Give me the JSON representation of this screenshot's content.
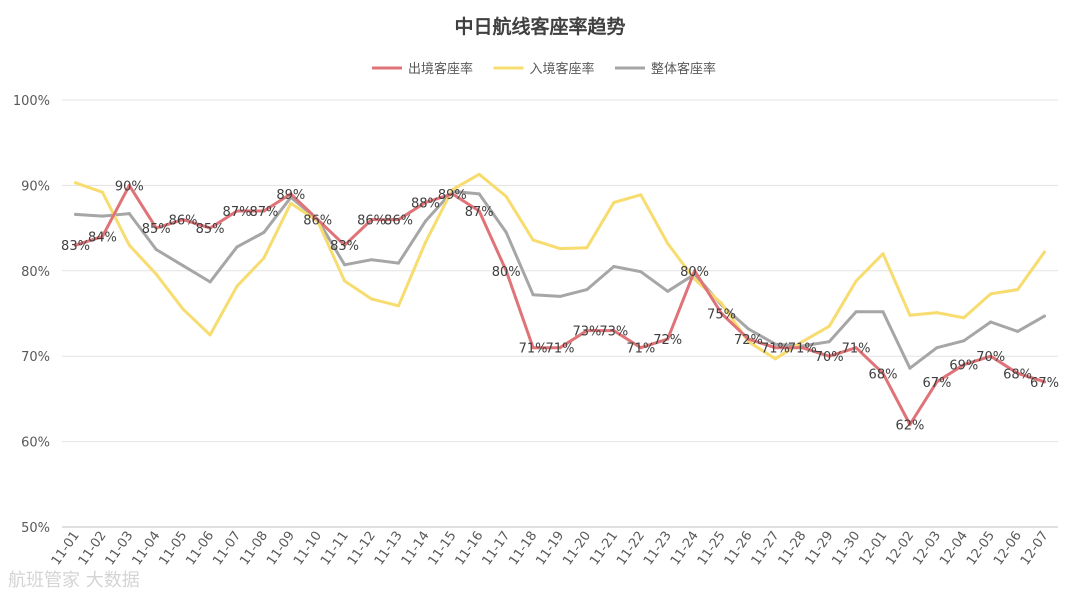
{
  "chart_data": {
    "type": "line",
    "title": "中日航线客座率趋势",
    "categories": [
      "11-01",
      "11-02",
      "11-03",
      "11-04",
      "11-05",
      "11-06",
      "11-07",
      "11-08",
      "11-09",
      "11-10",
      "11-11",
      "11-12",
      "11-13",
      "11-14",
      "11-15",
      "11-16",
      "11-17",
      "11-18",
      "11-19",
      "11-20",
      "11-21",
      "11-22",
      "11-23",
      "11-24",
      "11-25",
      "11-26",
      "11-27",
      "11-28",
      "11-29",
      "11-30",
      "12-01",
      "12-02",
      "12-03",
      "12-04",
      "12-05",
      "12-06",
      "12-07"
    ],
    "ylim": [
      0.5,
      1.0
    ],
    "yticks": [
      {
        "value": 0.5,
        "label": "50%"
      },
      {
        "value": 0.6,
        "label": "60%"
      },
      {
        "value": 0.7,
        "label": "70%"
      },
      {
        "value": 0.8,
        "label": "80%"
      },
      {
        "value": 0.9,
        "label": "90%"
      },
      {
        "value": 1.0,
        "label": "100%"
      }
    ],
    "legend_position": "top",
    "grid": "horizontal",
    "series": [
      {
        "name": "出境客座率",
        "color": "#e07377",
        "values": [
          0.83,
          0.84,
          0.9,
          0.85,
          0.86,
          0.85,
          0.87,
          0.87,
          0.89,
          0.86,
          0.83,
          0.86,
          0.86,
          0.88,
          0.89,
          0.87,
          0.8,
          0.71,
          0.71,
          0.73,
          0.73,
          0.71,
          0.72,
          0.8,
          0.75,
          0.72,
          0.71,
          0.71,
          0.7,
          0.71,
          0.68,
          0.62,
          0.67,
          0.69,
          0.7,
          0.68,
          0.67
        ],
        "labels": [
          "83%",
          "84%",
          "90%",
          "85%",
          "86%",
          "85%",
          "87%",
          "87%",
          "89%",
          "86%",
          "83%",
          "86%",
          "86%",
          "88%",
          "89%",
          "87%",
          "80%",
          "71%",
          "71%",
          "73%",
          "73%",
          "71%",
          "72%",
          "80%",
          "75%",
          "72%",
          "71%",
          "71%",
          "70%",
          "71%",
          "68%",
          "62%",
          "67%",
          "69%",
          "70%",
          "68%",
          "67%"
        ]
      },
      {
        "name": "入境客座率",
        "color": "#f7dc6f",
        "values": [
          0.903,
          0.892,
          0.83,
          0.796,
          0.755,
          0.725,
          0.782,
          0.815,
          0.879,
          0.858,
          0.788,
          0.767,
          0.759,
          0.833,
          0.895,
          0.913,
          0.887,
          0.836,
          0.826,
          0.827,
          0.88,
          0.889,
          0.832,
          0.79,
          0.762,
          0.717,
          0.697,
          0.717,
          0.735,
          0.788,
          0.82,
          0.748,
          0.751,
          0.745,
          0.773,
          0.778,
          0.822
        ]
      },
      {
        "name": "整体客座率",
        "color": "#a6a6a6",
        "values": [
          0.866,
          0.864,
          0.867,
          0.825,
          0.806,
          0.787,
          0.828,
          0.845,
          0.886,
          0.86,
          0.807,
          0.813,
          0.809,
          0.858,
          0.893,
          0.89,
          0.845,
          0.772,
          0.77,
          0.778,
          0.805,
          0.799,
          0.776,
          0.796,
          0.76,
          0.732,
          0.714,
          0.712,
          0.717,
          0.752,
          0.752,
          0.686,
          0.71,
          0.718,
          0.74,
          0.729,
          0.747
        ]
      }
    ]
  },
  "watermark": "航班管家 大数据"
}
